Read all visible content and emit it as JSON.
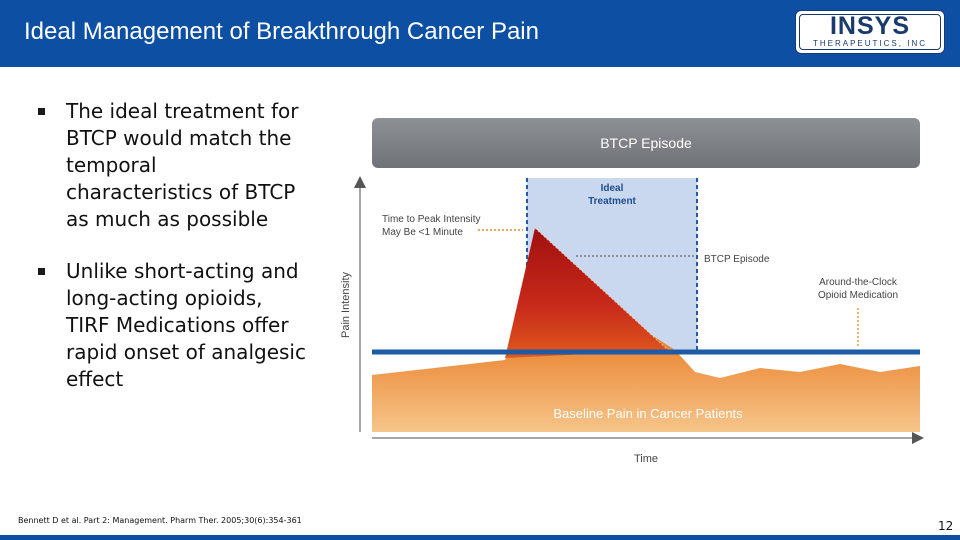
{
  "header": {
    "title": "Ideal Management of Breakthrough Cancer Pain",
    "logo_text": "INSYS",
    "logo_subtext": "THERAPEUTICS, INC"
  },
  "bullets": [
    "The ideal treatment for BTCP would match the temporal characteristics of BTCP as much as possible",
    "Unlike short-acting and long-acting opioids, TIRF Medications offer rapid onset of analgesic effect"
  ],
  "diagram": {
    "banner": "BTCP Episode",
    "ideal_treatment_line1": "Ideal",
    "ideal_treatment_line2": "Treatment",
    "time_to_peak_line1": "Time to Peak Intensity",
    "time_to_peak_line2": "May Be <1 Minute",
    "btcp_episode_label": "BTCP Episode",
    "atc_line1": "Around-the-Clock",
    "atc_line2": "Opioid Medication",
    "baseline_label": "Baseline Pain in Cancer Patients",
    "y_axis_label": "Pain Intensity",
    "x_axis_label": "Time"
  },
  "footer": {
    "citation": "Bennett D et al. Part 2: Management. Pharm Ther. 2005;30(6):354-361",
    "page_number": "12"
  },
  "colors": {
    "header_blue": "#0d4fa3",
    "baseline_line": "#1f5aa6",
    "ideal_region": "#c9d8ef",
    "spike_red": "#b81818",
    "baseline_orange": "#e8761e"
  }
}
